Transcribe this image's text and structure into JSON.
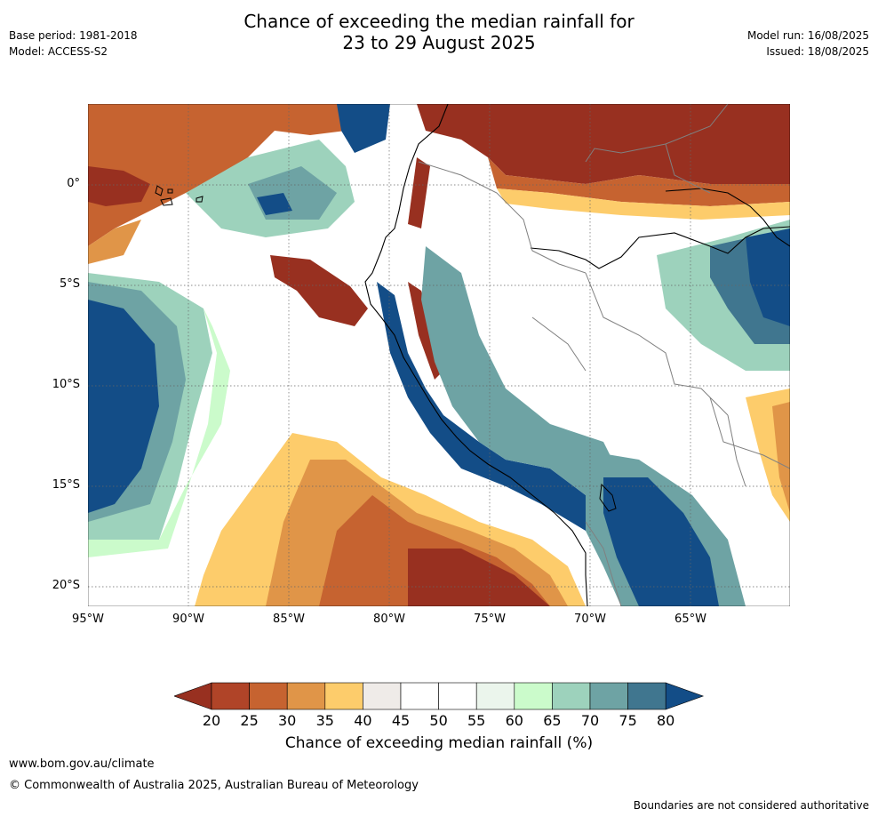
{
  "header": {
    "title_line1": "Chance of exceeding the median rainfall for",
    "title_line2": "23 to 29 August 2025",
    "base_period": "Base period: 1981-2018",
    "model": "Model: ACCESS-S2",
    "model_run": "Model run: 16/08/2025",
    "issued": "Issued: 18/08/2025"
  },
  "map": {
    "lat_labels": [
      "0°",
      "5°S",
      "10°S",
      "15°S",
      "20°S"
    ],
    "lon_labels": [
      "95°W",
      "90°W",
      "85°W",
      "80°W",
      "75°W",
      "70°W",
      "65°W"
    ]
  },
  "colorbar": {
    "ticks": [
      "20",
      "25",
      "30",
      "35",
      "40",
      "45",
      "50",
      "55",
      "60",
      "65",
      "70",
      "75",
      "80"
    ],
    "colors": [
      "#983020",
      "#b04428",
      "#c66330",
      "#e09548",
      "#fdcc6b",
      "#efebe8",
      "#ffffff",
      "#ffffff",
      "#ebf5ec",
      "#cbfbcb",
      "#9dd2bc",
      "#6ea3a4",
      "#40768f",
      "#134d87"
    ],
    "label": "Chance of exceeding median rainfall (%)"
  },
  "footer": {
    "website": "www.bom.gov.au/climate",
    "copyright": "© Commonwealth of Australia 2025, Australian Bureau of Meteorology",
    "disclaimer": "Boundaries are not considered authoritative"
  }
}
